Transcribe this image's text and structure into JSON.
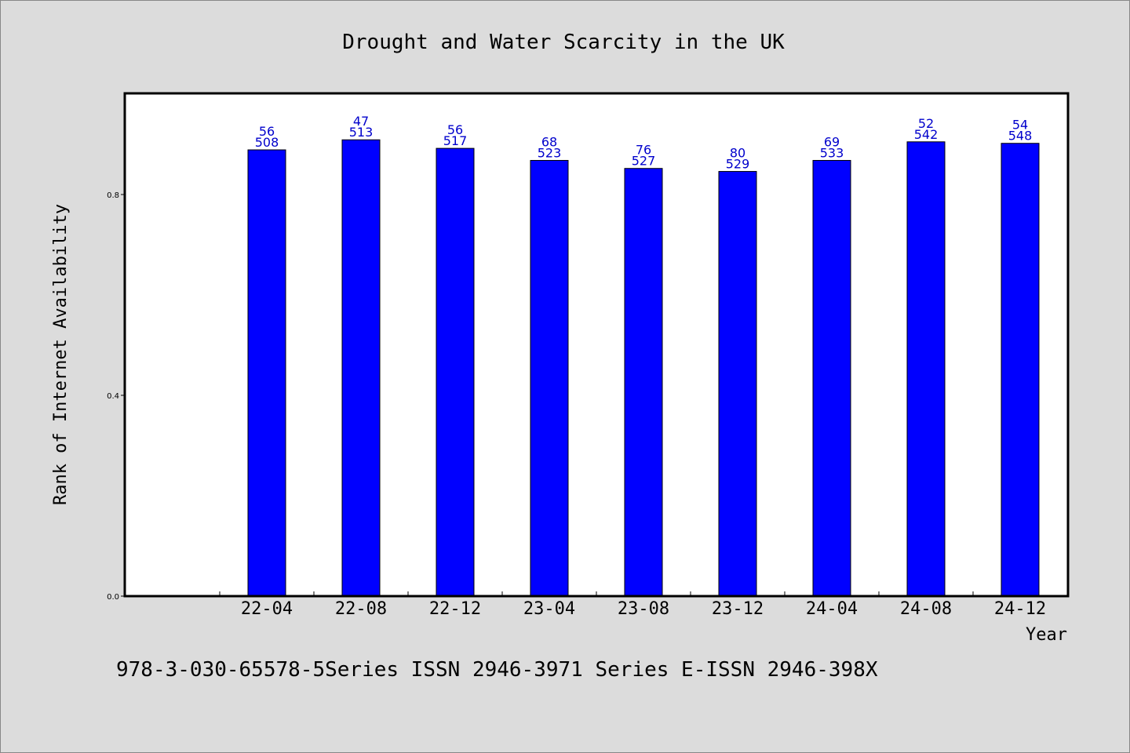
{
  "chart_data": {
    "type": "bar",
    "title": "Drought and Water Scarcity in the UK",
    "xlabel": "Year",
    "ylabel": "Rank of Internet Availability",
    "categories": [
      "22-04",
      "22-08",
      "22-12",
      "23-04",
      "23-08",
      "23-12",
      "24-04",
      "24-08",
      "24-12"
    ],
    "values": [
      0.889,
      0.909,
      0.892,
      0.868,
      0.852,
      0.846,
      0.868,
      0.905,
      0.902
    ],
    "labels_top": [
      "56",
      "47",
      "56",
      "68",
      "76",
      "80",
      "69",
      "52",
      "54"
    ],
    "labels_bottom": [
      "508",
      "513",
      "517",
      "523",
      "527",
      "529",
      "533",
      "542",
      "548"
    ],
    "ylim": [
      0,
      1.0
    ],
    "yticks": [
      0.0,
      0.4,
      0.8
    ],
    "ytick_labels": [
      "0.0",
      "0.4",
      "0.8"
    ],
    "bar_color": "#0000ff",
    "label_color": "#0000cc",
    "grid": false
  },
  "footer": {
    "text": "978-3-030-65578-5Series ISSN 2946-3971 Series E-ISSN 2946-398X"
  }
}
